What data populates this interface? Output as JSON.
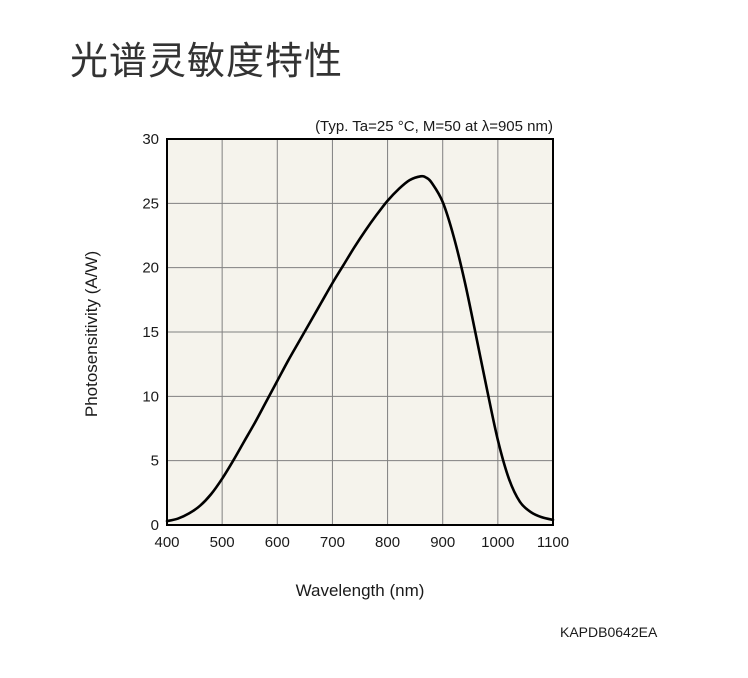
{
  "page_title": "光谱灵敏度特性",
  "figure_code": "KAPDB0642EA",
  "colors": {
    "plot_background": "#f5f3ec",
    "grid": "#808080",
    "curve": "#000000"
  },
  "chart_data": {
    "type": "line",
    "annotation": "(Typ. Ta=25 °C, M=50 at λ=905 nm)",
    "xlabel": "Wavelength (nm)",
    "ylabel": "Photosensitivity (A/W)",
    "xlim": [
      400,
      1100
    ],
    "ylim": [
      0,
      30
    ],
    "xticks": [
      400,
      500,
      600,
      700,
      800,
      900,
      1000,
      1100
    ],
    "yticks": [
      0,
      5,
      10,
      15,
      20,
      25,
      30
    ],
    "grid": true,
    "series": [
      {
        "x": [
          400,
          420,
          440,
          460,
          480,
          500,
          520,
          540,
          560,
          580,
          600,
          620,
          640,
          660,
          680,
          700,
          720,
          740,
          760,
          780,
          800,
          820,
          840,
          860,
          870,
          880,
          900,
          920,
          940,
          960,
          980,
          1000,
          1020,
          1040,
          1060,
          1080,
          1100
        ],
        "y": [
          0.3,
          0.5,
          0.9,
          1.5,
          2.4,
          3.6,
          5.0,
          6.5,
          8.0,
          9.6,
          11.2,
          12.8,
          14.3,
          15.8,
          17.3,
          18.8,
          20.2,
          21.6,
          22.9,
          24.1,
          25.2,
          26.1,
          26.8,
          27.1,
          27.0,
          26.6,
          25.1,
          22.4,
          18.9,
          14.8,
          10.6,
          6.6,
          3.6,
          1.8,
          1.0,
          0.6,
          0.4
        ]
      }
    ]
  }
}
